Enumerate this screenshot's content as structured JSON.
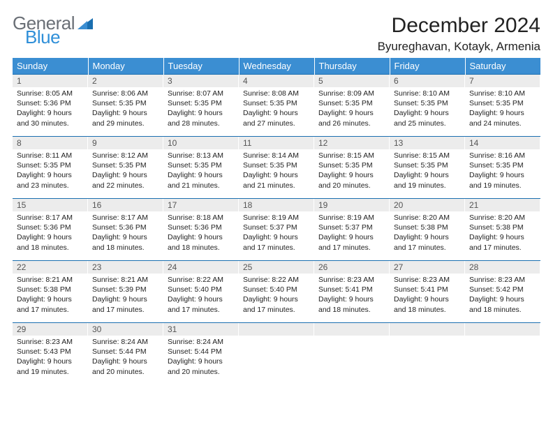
{
  "brand": {
    "word1": "General",
    "word2": "Blue",
    "color_gray": "#6a6f76",
    "color_blue": "#2f8fd8"
  },
  "title": "December 2024",
  "location": "Byureghavan, Kotayk, Armenia",
  "header_bg": "#3b8ed2",
  "header_fg": "#ffffff",
  "daynum_bg": "#ececec",
  "row_border": "#1a6fb0",
  "weekdays": [
    "Sunday",
    "Monday",
    "Tuesday",
    "Wednesday",
    "Thursday",
    "Friday",
    "Saturday"
  ],
  "weeks": [
    [
      {
        "n": "1",
        "sr": "Sunrise: 8:05 AM",
        "ss": "Sunset: 5:36 PM",
        "d1": "Daylight: 9 hours",
        "d2": "and 30 minutes."
      },
      {
        "n": "2",
        "sr": "Sunrise: 8:06 AM",
        "ss": "Sunset: 5:35 PM",
        "d1": "Daylight: 9 hours",
        "d2": "and 29 minutes."
      },
      {
        "n": "3",
        "sr": "Sunrise: 8:07 AM",
        "ss": "Sunset: 5:35 PM",
        "d1": "Daylight: 9 hours",
        "d2": "and 28 minutes."
      },
      {
        "n": "4",
        "sr": "Sunrise: 8:08 AM",
        "ss": "Sunset: 5:35 PM",
        "d1": "Daylight: 9 hours",
        "d2": "and 27 minutes."
      },
      {
        "n": "5",
        "sr": "Sunrise: 8:09 AM",
        "ss": "Sunset: 5:35 PM",
        "d1": "Daylight: 9 hours",
        "d2": "and 26 minutes."
      },
      {
        "n": "6",
        "sr": "Sunrise: 8:10 AM",
        "ss": "Sunset: 5:35 PM",
        "d1": "Daylight: 9 hours",
        "d2": "and 25 minutes."
      },
      {
        "n": "7",
        "sr": "Sunrise: 8:10 AM",
        "ss": "Sunset: 5:35 PM",
        "d1": "Daylight: 9 hours",
        "d2": "and 24 minutes."
      }
    ],
    [
      {
        "n": "8",
        "sr": "Sunrise: 8:11 AM",
        "ss": "Sunset: 5:35 PM",
        "d1": "Daylight: 9 hours",
        "d2": "and 23 minutes."
      },
      {
        "n": "9",
        "sr": "Sunrise: 8:12 AM",
        "ss": "Sunset: 5:35 PM",
        "d1": "Daylight: 9 hours",
        "d2": "and 22 minutes."
      },
      {
        "n": "10",
        "sr": "Sunrise: 8:13 AM",
        "ss": "Sunset: 5:35 PM",
        "d1": "Daylight: 9 hours",
        "d2": "and 21 minutes."
      },
      {
        "n": "11",
        "sr": "Sunrise: 8:14 AM",
        "ss": "Sunset: 5:35 PM",
        "d1": "Daylight: 9 hours",
        "d2": "and 21 minutes."
      },
      {
        "n": "12",
        "sr": "Sunrise: 8:15 AM",
        "ss": "Sunset: 5:35 PM",
        "d1": "Daylight: 9 hours",
        "d2": "and 20 minutes."
      },
      {
        "n": "13",
        "sr": "Sunrise: 8:15 AM",
        "ss": "Sunset: 5:35 PM",
        "d1": "Daylight: 9 hours",
        "d2": "and 19 minutes."
      },
      {
        "n": "14",
        "sr": "Sunrise: 8:16 AM",
        "ss": "Sunset: 5:35 PM",
        "d1": "Daylight: 9 hours",
        "d2": "and 19 minutes."
      }
    ],
    [
      {
        "n": "15",
        "sr": "Sunrise: 8:17 AM",
        "ss": "Sunset: 5:36 PM",
        "d1": "Daylight: 9 hours",
        "d2": "and 18 minutes."
      },
      {
        "n": "16",
        "sr": "Sunrise: 8:17 AM",
        "ss": "Sunset: 5:36 PM",
        "d1": "Daylight: 9 hours",
        "d2": "and 18 minutes."
      },
      {
        "n": "17",
        "sr": "Sunrise: 8:18 AM",
        "ss": "Sunset: 5:36 PM",
        "d1": "Daylight: 9 hours",
        "d2": "and 18 minutes."
      },
      {
        "n": "18",
        "sr": "Sunrise: 8:19 AM",
        "ss": "Sunset: 5:37 PM",
        "d1": "Daylight: 9 hours",
        "d2": "and 17 minutes."
      },
      {
        "n": "19",
        "sr": "Sunrise: 8:19 AM",
        "ss": "Sunset: 5:37 PM",
        "d1": "Daylight: 9 hours",
        "d2": "and 17 minutes."
      },
      {
        "n": "20",
        "sr": "Sunrise: 8:20 AM",
        "ss": "Sunset: 5:38 PM",
        "d1": "Daylight: 9 hours",
        "d2": "and 17 minutes."
      },
      {
        "n": "21",
        "sr": "Sunrise: 8:20 AM",
        "ss": "Sunset: 5:38 PM",
        "d1": "Daylight: 9 hours",
        "d2": "and 17 minutes."
      }
    ],
    [
      {
        "n": "22",
        "sr": "Sunrise: 8:21 AM",
        "ss": "Sunset: 5:38 PM",
        "d1": "Daylight: 9 hours",
        "d2": "and 17 minutes."
      },
      {
        "n": "23",
        "sr": "Sunrise: 8:21 AM",
        "ss": "Sunset: 5:39 PM",
        "d1": "Daylight: 9 hours",
        "d2": "and 17 minutes."
      },
      {
        "n": "24",
        "sr": "Sunrise: 8:22 AM",
        "ss": "Sunset: 5:40 PM",
        "d1": "Daylight: 9 hours",
        "d2": "and 17 minutes."
      },
      {
        "n": "25",
        "sr": "Sunrise: 8:22 AM",
        "ss": "Sunset: 5:40 PM",
        "d1": "Daylight: 9 hours",
        "d2": "and 17 minutes."
      },
      {
        "n": "26",
        "sr": "Sunrise: 8:23 AM",
        "ss": "Sunset: 5:41 PM",
        "d1": "Daylight: 9 hours",
        "d2": "and 18 minutes."
      },
      {
        "n": "27",
        "sr": "Sunrise: 8:23 AM",
        "ss": "Sunset: 5:41 PM",
        "d1": "Daylight: 9 hours",
        "d2": "and 18 minutes."
      },
      {
        "n": "28",
        "sr": "Sunrise: 8:23 AM",
        "ss": "Sunset: 5:42 PM",
        "d1": "Daylight: 9 hours",
        "d2": "and 18 minutes."
      }
    ],
    [
      {
        "n": "29",
        "sr": "Sunrise: 8:23 AM",
        "ss": "Sunset: 5:43 PM",
        "d1": "Daylight: 9 hours",
        "d2": "and 19 minutes."
      },
      {
        "n": "30",
        "sr": "Sunrise: 8:24 AM",
        "ss": "Sunset: 5:44 PM",
        "d1": "Daylight: 9 hours",
        "d2": "and 20 minutes."
      },
      {
        "n": "31",
        "sr": "Sunrise: 8:24 AM",
        "ss": "Sunset: 5:44 PM",
        "d1": "Daylight: 9 hours",
        "d2": "and 20 minutes."
      },
      {
        "n": "",
        "sr": "",
        "ss": "",
        "d1": "",
        "d2": ""
      },
      {
        "n": "",
        "sr": "",
        "ss": "",
        "d1": "",
        "d2": ""
      },
      {
        "n": "",
        "sr": "",
        "ss": "",
        "d1": "",
        "d2": ""
      },
      {
        "n": "",
        "sr": "",
        "ss": "",
        "d1": "",
        "d2": ""
      }
    ]
  ]
}
